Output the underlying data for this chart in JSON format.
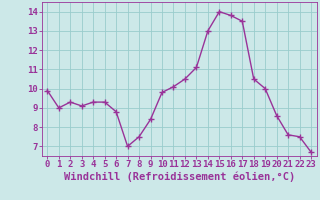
{
  "x": [
    0,
    1,
    2,
    3,
    4,
    5,
    6,
    7,
    8,
    9,
    10,
    11,
    12,
    13,
    14,
    15,
    16,
    17,
    18,
    19,
    20,
    21,
    22,
    23
  ],
  "y": [
    9.9,
    9.0,
    9.3,
    9.1,
    9.3,
    9.3,
    8.8,
    7.0,
    7.5,
    8.4,
    9.8,
    10.1,
    10.5,
    11.1,
    13.0,
    14.0,
    13.8,
    13.5,
    10.5,
    10.0,
    8.6,
    7.6,
    7.5,
    6.7
  ],
  "line_color": "#993399",
  "marker": "+",
  "bg_color": "#cce8e8",
  "grid_color": "#99cccc",
  "xlabel": "Windchill (Refroidissement éolien,°C)",
  "xlim": [
    -0.5,
    23.5
  ],
  "ylim": [
    6.5,
    14.5
  ],
  "yticks": [
    7,
    8,
    9,
    10,
    11,
    12,
    13,
    14
  ],
  "xticks": [
    0,
    1,
    2,
    3,
    4,
    5,
    6,
    7,
    8,
    9,
    10,
    11,
    12,
    13,
    14,
    15,
    16,
    17,
    18,
    19,
    20,
    21,
    22,
    23
  ],
  "tick_color": "#993399",
  "tick_fontsize": 6.5,
  "xlabel_fontsize": 7.5,
  "line_width": 1.0,
  "marker_size": 4
}
